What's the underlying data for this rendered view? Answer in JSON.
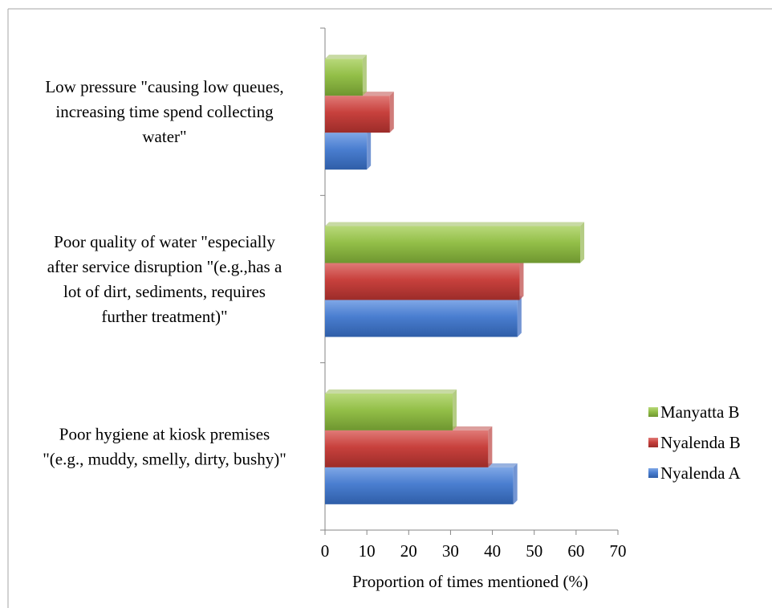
{
  "chart_data": {
    "type": "bar",
    "orientation": "horizontal",
    "categories": [
      [
        "Poor hygiene at kiosk premises",
        "\"(e.g., muddy, smelly, dirty, bushy)\""
      ],
      [
        "Poor quality of water \"especially",
        "after service disruption \"(e.g.,has a",
        "lot of dirt, sediments, requires",
        "further treatment)\""
      ],
      [
        "Low pressure \"causing low queues,",
        "increasing time spend collecting",
        "water\""
      ]
    ],
    "series": [
      {
        "name": "Nyalenda A",
        "color": "#4472C4",
        "values": [
          45,
          46,
          10
        ]
      },
      {
        "name": "Nyalenda B",
        "color": "#C0504D",
        "values": [
          39,
          46.5,
          15.5
        ]
      },
      {
        "name": "Manyatta B",
        "color": "#9BBB59",
        "values": [
          30.5,
          61,
          9
        ]
      }
    ],
    "legend_order": [
      "Manyatta B",
      "Nyalenda B",
      "Nyalenda A"
    ],
    "xlabel": "Proportion of times mentioned  (%)",
    "ylabel": "",
    "xlim": [
      0,
      70
    ],
    "xticks": [
      0,
      10,
      20,
      30,
      40,
      50,
      60,
      70
    ],
    "grid": false,
    "legend_position": "right"
  }
}
